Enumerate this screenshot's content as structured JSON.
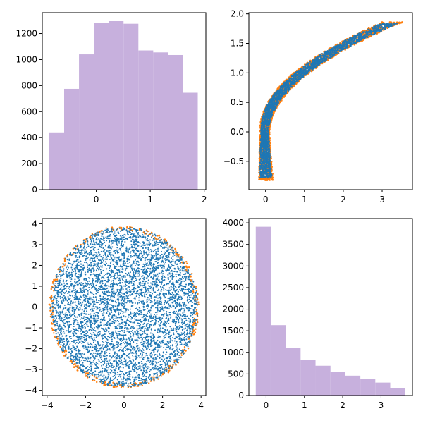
{
  "chart_data": [
    {
      "type": "bar",
      "panel": "top-left",
      "subtype": "histogram",
      "bar_color": "#c7b0dd",
      "bin_edges": [
        -0.87,
        -0.595,
        -0.32,
        -0.045,
        0.23,
        0.505,
        0.78,
        1.055,
        1.33,
        1.605,
        1.88
      ],
      "values": [
        440,
        775,
        1040,
        1280,
        1295,
        1275,
        1070,
        1055,
        1035,
        745
      ],
      "xlim": [
        -1.0,
        2.03
      ],
      "ylim": [
        0,
        1360
      ],
      "xticks": [
        0,
        1,
        2
      ],
      "xtick_labels": [
        "0",
        "1",
        "2"
      ],
      "yticks": [
        0,
        200,
        400,
        600,
        800,
        1000,
        1200
      ],
      "ytick_labels": [
        "0",
        "200",
        "400",
        "600",
        "800",
        "1000",
        "1200"
      ]
    },
    {
      "type": "scatter",
      "panel": "top-right",
      "shape": "parabola",
      "edge_color": "#ff7f0e",
      "point_color": "#1f77b4",
      "point_count": 2600,
      "x_range": [
        -0.1,
        3.6
      ],
      "y_range": [
        -0.85,
        1.88
      ],
      "xlim": [
        -0.43,
        3.78
      ],
      "ylim": [
        -0.98,
        2.02
      ],
      "xticks": [
        0,
        1,
        2,
        3
      ],
      "xtick_labels": [
        "0",
        "1",
        "2",
        "3"
      ],
      "yticks": [
        -0.5,
        0.0,
        0.5,
        1.0,
        1.5,
        2.0
      ],
      "ytick_labels": [
        "−0.5",
        "0.0",
        "0.5",
        "1.0",
        "1.5",
        "2.0"
      ]
    },
    {
      "type": "scatter",
      "panel": "bottom-left",
      "shape": "disk",
      "edge_color": "#ff7f0e",
      "point_color": "#1f77b4",
      "point_count": 5200,
      "radius": 3.9,
      "xlim": [
        -4.25,
        4.25
      ],
      "ylim": [
        -4.25,
        4.25
      ],
      "xticks": [
        -4,
        -2,
        0,
        2,
        4
      ],
      "xtick_labels": [
        "−4",
        "−2",
        "0",
        "2",
        "4"
      ],
      "yticks": [
        -4,
        -3,
        -2,
        -1,
        0,
        1,
        2,
        3,
        4
      ],
      "ytick_labels": [
        "−4",
        "−3",
        "−2",
        "−1",
        "0",
        "1",
        "2",
        "3",
        "4"
      ]
    },
    {
      "type": "bar",
      "panel": "bottom-right",
      "subtype": "histogram",
      "bar_color": "#c7b0dd",
      "bin_edges": [
        -0.27,
        0.12,
        0.51,
        0.9,
        1.29,
        1.68,
        2.07,
        2.46,
        2.85,
        3.24,
        3.63
      ],
      "values": [
        3910,
        1630,
        1110,
        820,
        690,
        545,
        460,
        390,
        300,
        165
      ],
      "xlim": [
        -0.45,
        3.82
      ],
      "ylim": [
        0,
        4100
      ],
      "xticks": [
        0,
        1,
        2,
        3
      ],
      "xtick_labels": [
        "0",
        "1",
        "2",
        "3"
      ],
      "yticks": [
        0,
        500,
        1000,
        1500,
        2000,
        2500,
        3000,
        3500,
        4000
      ],
      "ytick_labels": [
        "0",
        "500",
        "1000",
        "1500",
        "2000",
        "2500",
        "3000",
        "3500",
        "4000"
      ]
    }
  ]
}
